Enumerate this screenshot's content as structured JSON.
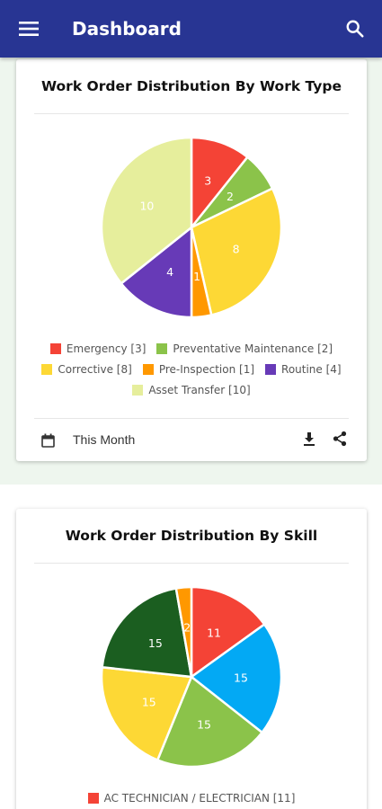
{
  "header": {
    "title": "Dashboard",
    "menu_icon": "menu-icon",
    "search_icon": "search-icon",
    "color": "#283593"
  },
  "cards": [
    {
      "title": "Work Order Distribution By Work Type",
      "period_label": "This Month",
      "chart_data": {
        "type": "pie",
        "title": "Work Order Distribution By Work Type",
        "series": [
          {
            "name": "Emergency",
            "value": 3,
            "color": "#f44336",
            "legend": "Emergency [3]"
          },
          {
            "name": "Preventative Maintenance",
            "value": 2,
            "color": "#8bc34a",
            "legend": "Preventative Maintenance [2]"
          },
          {
            "name": "Corrective",
            "value": 8,
            "color": "#fdd835",
            "legend": "Corrective [8]"
          },
          {
            "name": "Pre-Inspection",
            "value": 1,
            "color": "#ff9800",
            "legend": "Pre-Inspection [1]"
          },
          {
            "name": "Routine",
            "value": 4,
            "color": "#673ab7",
            "legend": "Routine [4]"
          },
          {
            "name": "Asset Transfer",
            "value": 10,
            "color": "#e6ee9c",
            "legend": "Asset Transfer [10]"
          }
        ],
        "legend_rows": [
          [
            0,
            1
          ],
          [
            2,
            3,
            4
          ],
          [
            5
          ]
        ]
      }
    },
    {
      "title": "Work Order Distribution By Skill",
      "chart_data": {
        "type": "pie",
        "title": "Work Order Distribution By Skill",
        "series": [
          {
            "name": "AC TECHNICIAN / ELECTRICIAN",
            "value": 11,
            "color": "#f44336",
            "legend": "AC TECHNICIAN / ELECTRICIAN [11]"
          },
          {
            "value": 15,
            "color": "#03a9f4"
          },
          {
            "value": 15,
            "color": "#8bc34a"
          },
          {
            "value": 15,
            "color": "#fdd835"
          },
          {
            "value": 15,
            "color": "#1b5e20"
          },
          {
            "value": 2,
            "color": "#ff9800"
          }
        ],
        "legend_rows": [
          [
            0
          ]
        ]
      }
    }
  ]
}
